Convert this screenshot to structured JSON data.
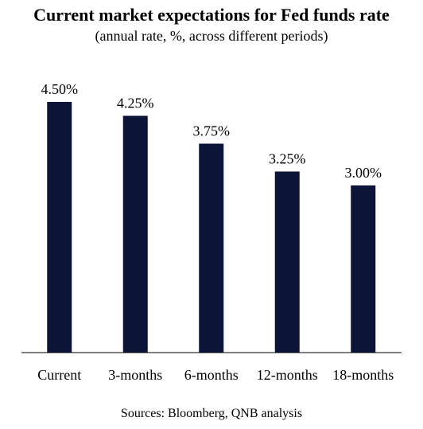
{
  "chart_data": {
    "type": "bar",
    "title": "Current market expectations for Fed funds rate",
    "subtitle": "(annual rate, %, across different periods)",
    "categories": [
      "Current",
      "3-months",
      "6-months",
      "12-months",
      "18-months"
    ],
    "values": [
      4.5,
      4.25,
      3.75,
      3.25,
      3.0
    ],
    "data_labels": [
      "4.50%",
      "4.25%",
      "3.75%",
      "3.25%",
      "3.00%"
    ],
    "ylim": [
      0,
      4.5
    ],
    "grid": false,
    "legend": "none",
    "bar_color": "#0c1538",
    "source": "Sources: Bloomberg, QNB analysis"
  }
}
